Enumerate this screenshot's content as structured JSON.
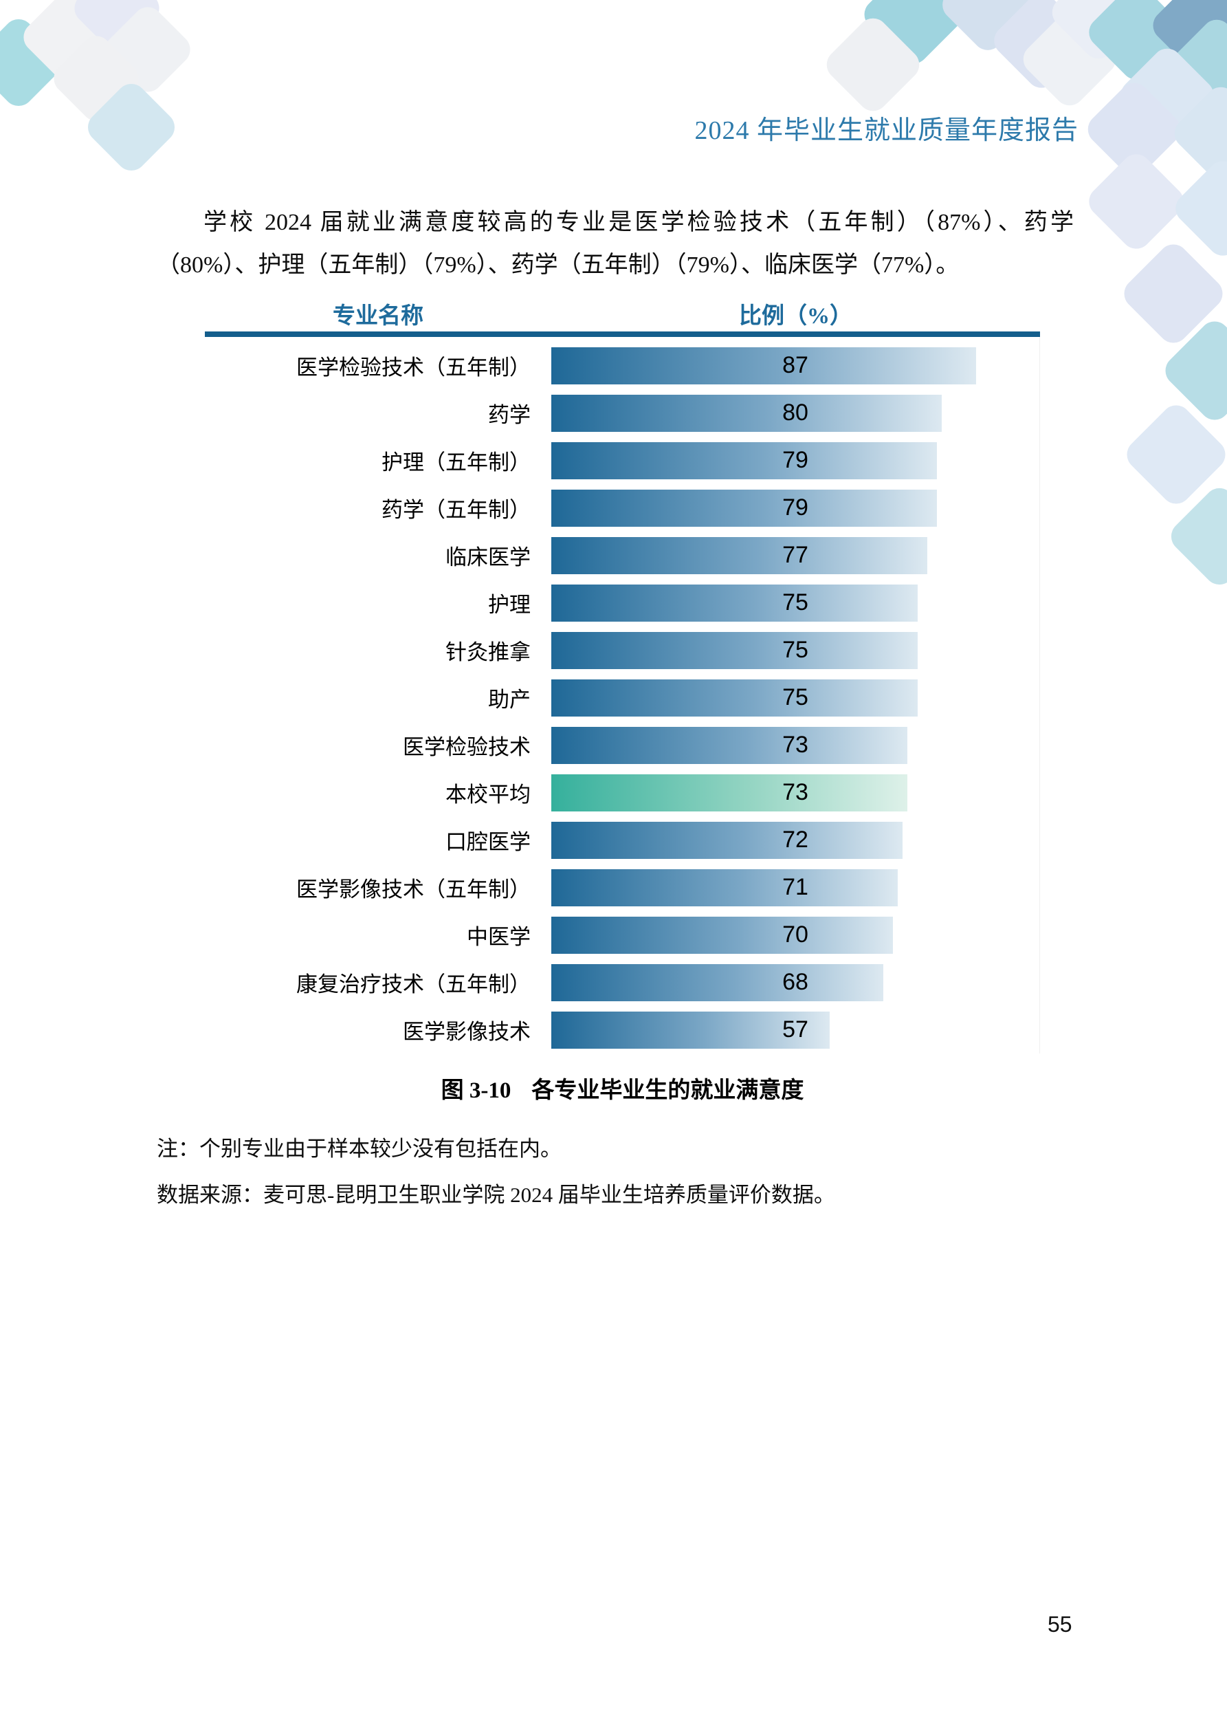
{
  "header": {
    "title": "2024 年毕业生就业质量年度报告"
  },
  "paragraph": {
    "text": "学校 2024 届就业满意度较高的专业是医学检验技术（五年制）（87%）、药学（80%）、护理（五年制）（79%）、药学（五年制）（79%）、临床医学（77%）。"
  },
  "table": {
    "name_header": "专业名称",
    "value_header": "比例（%）"
  },
  "chart_data": {
    "type": "bar",
    "orientation": "horizontal",
    "categories": [
      "医学检验技术（五年制）",
      "药学",
      "护理（五年制）",
      "药学（五年制）",
      "临床医学",
      "护理",
      "针灸推拿",
      "助产",
      "医学检验技术",
      "本校平均",
      "口腔医学",
      "医学影像技术（五年制）",
      "中医学",
      "康复治疗技术（五年制）",
      "医学影像技术"
    ],
    "values": [
      87,
      80,
      79,
      79,
      77,
      75,
      75,
      75,
      73,
      73,
      72,
      71,
      70,
      68,
      57
    ],
    "xlim": [
      0,
      100
    ],
    "grid": false,
    "legend": false,
    "highlight_category": "本校平均",
    "bar_color_start": "#1f6897",
    "bar_color_mid": "#7ba7c6",
    "bar_color_end": "#dde9f1",
    "highlight_color_start": "#35b09c",
    "highlight_color_mid": "#93d4c2",
    "highlight_color_end": "#def1e9",
    "header_rule_color": "#145e8c",
    "title": "图 3-10　各专业毕业生的就业满意度"
  },
  "caption": {
    "figure_label": "图 3-10",
    "title": "各专业毕业生的就业满意度"
  },
  "notes": {
    "note": "注：个别专业由于样本较少没有包括在内。",
    "source": "数据来源：麦可思-昆明卫生职业学院 2024 届毕业生培养质量评价数据。"
  },
  "footer": {
    "page_number": "55"
  },
  "accent_colors": {
    "header_text": "#2d7aab",
    "column_header_text": "#1e6b9c"
  }
}
